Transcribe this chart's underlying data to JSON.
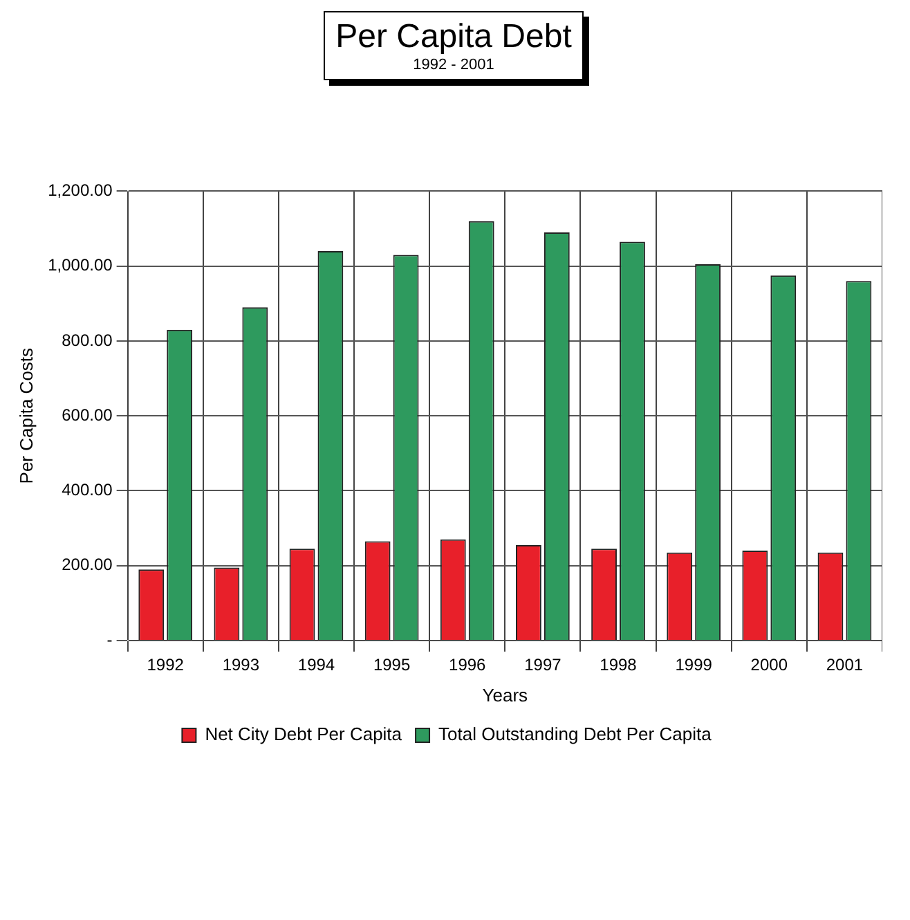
{
  "chart_data": {
    "type": "bar",
    "title": "Per Capita Debt",
    "subtitle": "1992 - 2001",
    "xlabel": "Years",
    "ylabel": "Per Capita Costs",
    "categories": [
      "1992",
      "1993",
      "1994",
      "1995",
      "1996",
      "1997",
      "1998",
      "1999",
      "2000",
      "2001"
    ],
    "series": [
      {
        "name": "Net City Debt Per Capita",
        "color": "#e8202a",
        "values": [
          190,
          195,
          245,
          265,
          270,
          255,
          245,
          235,
          240,
          235
        ]
      },
      {
        "name": "Total Outstanding Debt Per Capita",
        "color": "#2e9a5e",
        "values": [
          830,
          890,
          1040,
          1030,
          1120,
          1090,
          1065,
          1005,
          975,
          960
        ]
      }
    ],
    "ylim": [
      0,
      1200
    ],
    "yticks": [
      {
        "value": 0,
        "label": "-"
      },
      {
        "value": 200,
        "label": "200.00"
      },
      {
        "value": 400,
        "label": "400.00"
      },
      {
        "value": 600,
        "label": "600.00"
      },
      {
        "value": 800,
        "label": "800.00"
      },
      {
        "value": 1000,
        "label": "1,000.00"
      },
      {
        "value": 1200,
        "label": "1,200.00"
      }
    ],
    "grid": true,
    "legend": "bottom"
  }
}
